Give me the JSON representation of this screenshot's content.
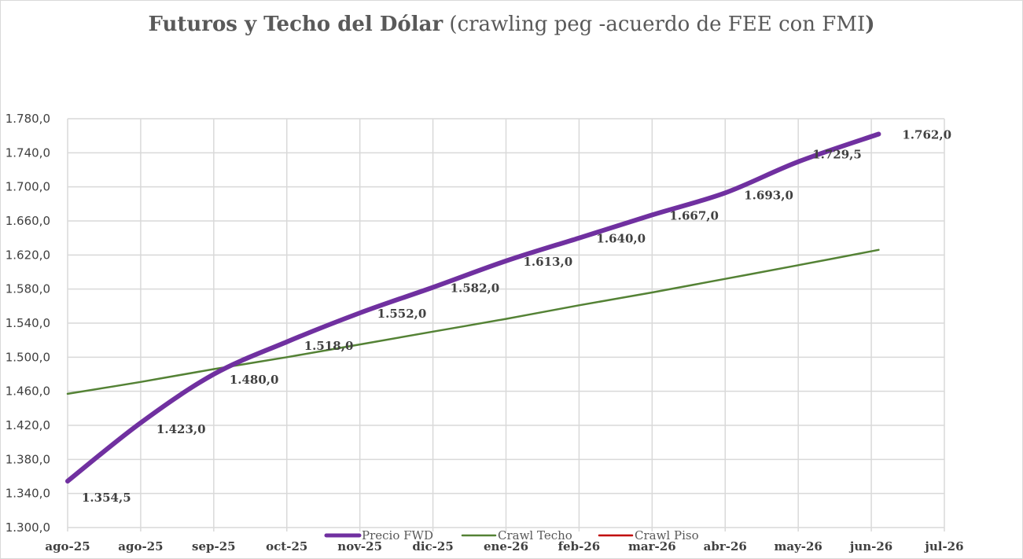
{
  "chart_data": {
    "type": "line",
    "title": "Futuros y Techo del Dólar",
    "subtitle": "(crawling peg -acuerdo de FEE con FMI",
    "title_close": ")",
    "categories": [
      "ago-25",
      "ago-25",
      "sep-25",
      "oct-25",
      "nov-25",
      "dic-25",
      "ene-26",
      "feb-26",
      "mar-26",
      "abr-26",
      "may-26",
      "jun-26",
      "jul-26"
    ],
    "ylim": [
      1300,
      1780
    ],
    "yticks": [
      1300,
      1340,
      1380,
      1420,
      1460,
      1500,
      1540,
      1580,
      1620,
      1660,
      1700,
      1740,
      1780
    ],
    "ytick_labels": [
      "1.300,0",
      "1.340,0",
      "1.380,0",
      "1.420,0",
      "1.460,0",
      "1.500,0",
      "1.540,0",
      "1.580,0",
      "1.620,0",
      "1.660,0",
      "1.700,0",
      "1.740,0",
      "1.780,0"
    ],
    "grid": true,
    "legend_position": "bottom",
    "series": [
      {
        "name": "Precio FWD",
        "color": "#7030a0",
        "x": [
          0,
          1,
          2,
          3,
          4,
          5,
          6,
          7,
          8,
          9,
          10,
          11.1
        ],
        "values": [
          1354.5,
          1423.0,
          1480.0,
          1518.0,
          1552.0,
          1582.0,
          1613.0,
          1640.0,
          1667.0,
          1693.0,
          1729.5,
          1762.0
        ],
        "data_labels": [
          "1.354,5",
          "1.423,0",
          "1.480,0",
          "1.518,0",
          "1.552,0",
          "1.582,0",
          "1.613,0",
          "1.640,0",
          "1.667,0",
          "1.693,0",
          "1.729,5",
          "1.762,0"
        ]
      },
      {
        "name": "Crawl Techo",
        "color": "#548235",
        "x": [
          0,
          1,
          2,
          3,
          4,
          5,
          6,
          7,
          8,
          9,
          10,
          11.1
        ],
        "values": [
          1457,
          1471,
          1486,
          1500,
          1515,
          1530,
          1545,
          1561,
          1576,
          1592,
          1608,
          1626
        ]
      },
      {
        "name": "Crawl Piso",
        "color": "#c00000",
        "x": [],
        "values": []
      }
    ]
  }
}
